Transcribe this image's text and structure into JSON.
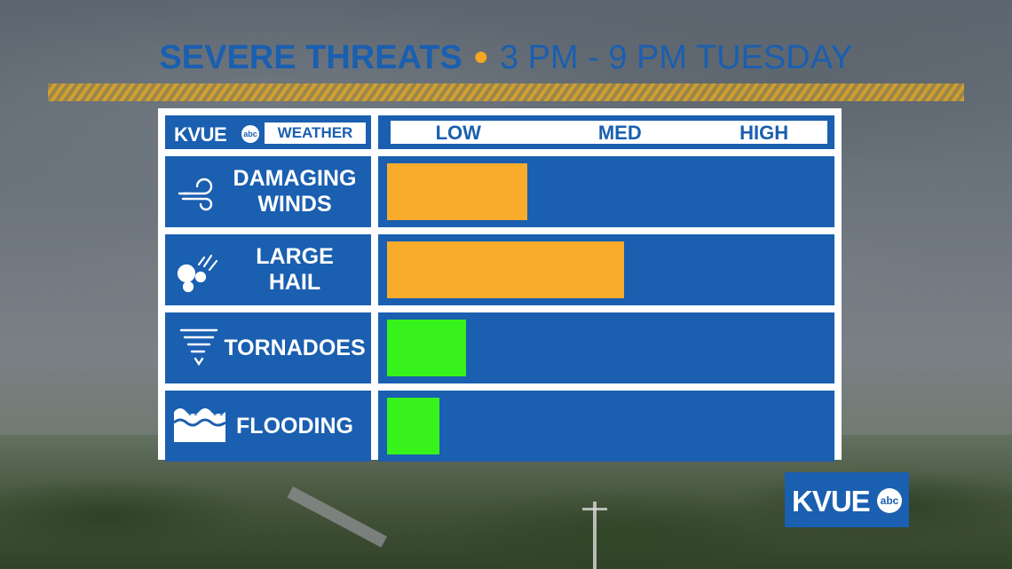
{
  "header": {
    "title": "SEVERE THREATS",
    "subtitle": "3 PM - 9 PM TUESDAY"
  },
  "brand": {
    "logo": "KVUE",
    "abc": "abc",
    "weather": "WEATHER"
  },
  "corner_logo": {
    "logo": "KVUE",
    "abc": "abc"
  },
  "colors": {
    "brand_blue": "#1a5fb0",
    "orange": "#f9ab2c",
    "green": "#38f21c",
    "accent": "#f5a623"
  },
  "chart_data": {
    "type": "bar",
    "orientation": "horizontal",
    "title": "SEVERE THREATS",
    "subtitle": "3 PM - 9 PM TUESDAY",
    "scale_labels": [
      "LOW",
      "MED",
      "HIGH"
    ],
    "scale_range": [
      0,
      1
    ],
    "categories": [
      {
        "label_lines": [
          "DAMAGING",
          "WINDS"
        ],
        "icon": "wind-icon"
      },
      {
        "label_lines": [
          "LARGE",
          "HAIL"
        ],
        "icon": "hail-icon"
      },
      {
        "label_lines": [
          "TORNADOES"
        ],
        "icon": "tornado-icon"
      },
      {
        "label_lines": [
          "FLOODING"
        ],
        "icon": "flood-icon"
      }
    ],
    "values": [
      0.32,
      0.54,
      0.18,
      0.12
    ],
    "bar_colors": [
      "#f9ab2c",
      "#f9ab2c",
      "#38f21c",
      "#38f21c"
    ]
  }
}
